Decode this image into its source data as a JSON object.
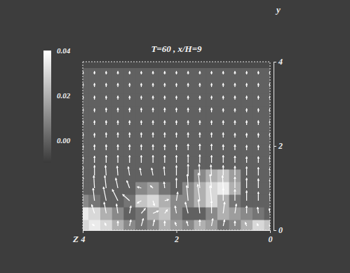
{
  "chart_data": {
    "type": "vector_field",
    "title": "T=60 , x/H=9",
    "x_label": "Z",
    "y_label": "y",
    "xlim": [
      4,
      0
    ],
    "ylim": [
      0,
      4
    ],
    "xticks": [
      4,
      2,
      0
    ],
    "yticks": [
      0,
      2,
      4
    ],
    "color": "#ffffff",
    "x": [
      4,
      3.75,
      3.5,
      3.25,
      3,
      2.75,
      2.5,
      2.25,
      2,
      1.75,
      1.5,
      1.25,
      1,
      0.75,
      0.5,
      0.25,
      0
    ],
    "y": [
      0.1,
      0.4,
      0.7,
      1.0,
      1.3,
      1.6,
      1.9,
      2.2,
      2.5,
      2.8,
      3.1,
      3.4,
      3.7
    ],
    "u": [
      [
        0.02,
        0.03,
        0.02,
        0,
        -0.02,
        -0.03,
        -0.02,
        0,
        0.02,
        0.02,
        0,
        -0.02,
        -0.02,
        0,
        0.02,
        0.02,
        0.01
      ],
      [
        0.03,
        0.04,
        0.03,
        0.02,
        -0.02,
        -0.06,
        -0.08,
        -0.04,
        0.02,
        0.04,
        0.02,
        0,
        -0.02,
        -0.02,
        0,
        0.01,
        0.01
      ],
      [
        0.01,
        0.02,
        0.04,
        0.08,
        0.1,
        0.06,
        -0.02,
        -0.06,
        -0.02,
        0.02,
        0.03,
        0.02,
        0,
        0,
        0,
        0,
        0
      ],
      [
        0,
        0.01,
        0.02,
        0.03,
        0.04,
        0.06,
        0.04,
        0.01,
        0,
        0.01,
        0.02,
        0.02,
        0.01,
        0,
        0,
        0,
        0
      ],
      [
        0,
        0,
        0.01,
        0.01,
        0.02,
        0.02,
        0.02,
        0.01,
        0,
        0,
        0.01,
        0.01,
        0,
        0,
        0,
        0,
        0
      ],
      [
        0,
        0,
        0,
        0,
        0,
        0,
        0,
        0,
        0,
        0,
        0,
        0,
        0,
        0,
        0,
        0,
        0
      ],
      [
        0,
        0,
        0,
        0,
        0,
        0,
        0,
        0,
        0,
        0,
        0,
        0,
        0,
        0,
        0,
        0,
        0
      ],
      [
        0,
        0,
        0,
        0,
        0,
        0,
        0,
        0,
        0,
        0,
        0,
        0,
        0,
        0,
        0,
        0,
        0
      ],
      [
        0,
        0,
        0,
        0,
        0,
        0,
        0,
        0,
        0,
        0,
        0,
        0,
        0,
        0,
        0,
        0,
        0
      ],
      [
        0,
        0,
        0,
        0,
        0,
        0,
        0,
        0,
        0,
        0,
        0,
        0,
        0,
        0,
        0,
        0,
        0
      ],
      [
        0,
        0,
        0,
        0,
        0,
        0,
        0,
        0,
        0,
        0,
        0,
        0,
        0,
        0,
        0,
        0,
        0
      ],
      [
        0,
        0,
        0,
        0,
        0,
        0,
        0,
        0,
        0,
        0,
        0,
        0,
        0,
        0,
        0,
        0,
        0
      ],
      [
        0,
        0,
        0,
        0,
        0,
        0,
        0,
        0,
        0,
        0,
        0,
        0,
        0,
        0,
        0,
        0,
        0
      ]
    ],
    "v": [
      [
        0.02,
        0.03,
        0.05,
        0.08,
        0.1,
        0.12,
        0.1,
        0.08,
        0.06,
        0.08,
        0.1,
        0.12,
        0.1,
        0.08,
        0.06,
        0.04,
        0.02
      ],
      [
        0.1,
        0.14,
        0.18,
        0.15,
        0.12,
        0.08,
        0.04,
        0.06,
        0.12,
        0.18,
        0.22,
        0.2,
        0.18,
        0.15,
        0.12,
        0.1,
        0.08
      ],
      [
        0.16,
        0.2,
        0.22,
        0.18,
        0.1,
        -0.04,
        -0.08,
        0.02,
        0.14,
        0.24,
        0.26,
        0.24,
        0.2,
        0.18,
        0.16,
        0.14,
        0.12
      ],
      [
        0.18,
        0.2,
        0.2,
        0.16,
        0.12,
        0.02,
        0.04,
        0.1,
        0.16,
        0.22,
        0.24,
        0.22,
        0.2,
        0.18,
        0.16,
        0.15,
        0.14
      ],
      [
        0.14,
        0.16,
        0.16,
        0.15,
        0.14,
        0.12,
        0.12,
        0.14,
        0.16,
        0.18,
        0.18,
        0.17,
        0.16,
        0.15,
        0.14,
        0.13,
        0.12
      ],
      [
        0.1,
        0.11,
        0.12,
        0.12,
        0.12,
        0.12,
        0.12,
        0.12,
        0.12,
        0.13,
        0.13,
        0.12,
        0.12,
        0.11,
        0.1,
        0.1,
        0.1
      ],
      [
        0.08,
        0.09,
        0.09,
        0.09,
        0.09,
        0.09,
        0.09,
        0.09,
        0.09,
        0.1,
        0.1,
        0.1,
        0.09,
        0.09,
        0.08,
        0.08,
        0.08
      ],
      [
        0.07,
        0.07,
        0.08,
        0.08,
        0.08,
        0.08,
        0.08,
        0.08,
        0.08,
        0.08,
        0.08,
        0.08,
        0.08,
        0.07,
        0.07,
        0.07,
        0.07
      ],
      [
        0.07,
        0.07,
        0.07,
        0.07,
        0.07,
        0.07,
        0.07,
        0.07,
        0.07,
        0.07,
        0.07,
        0.07,
        0.07,
        0.07,
        0.07,
        0.07,
        0.07
      ],
      [
        0.06,
        0.06,
        0.07,
        0.07,
        0.07,
        0.07,
        0.07,
        0.07,
        0.07,
        0.07,
        0.07,
        0.07,
        0.06,
        0.06,
        0.06,
        0.06,
        0.06
      ],
      [
        0.06,
        0.06,
        0.06,
        0.06,
        0.06,
        0.06,
        0.06,
        0.06,
        0.06,
        0.06,
        0.06,
        0.06,
        0.06,
        0.06,
        0.06,
        0.06,
        0.06
      ],
      [
        0.06,
        0.06,
        0.06,
        0.06,
        0.06,
        0.06,
        0.06,
        0.06,
        0.06,
        0.06,
        0.06,
        0.06,
        0.06,
        0.06,
        0.06,
        0.06,
        0.06
      ],
      [
        0.05,
        0.05,
        0.05,
        0.05,
        0.05,
        0.05,
        0.05,
        0.05,
        0.05,
        0.05,
        0.05,
        0.05,
        0.05,
        0.05,
        0.05,
        0.05,
        0.05
      ]
    ],
    "cells": [
      [
        0.03,
        0.035,
        0.03,
        0.02,
        0.01,
        0.005,
        0.01,
        0.02,
        0.015,
        0.01,
        0.02,
        0.015,
        0.005,
        0.01,
        0.02,
        0.03,
        0.025
      ],
      [
        0.035,
        0.03,
        0.02,
        0.01,
        0,
        0.005,
        0.02,
        0.025,
        0.01,
        0,
        0,
        0.01,
        0.02,
        0.015,
        0.01,
        0.005,
        0
      ],
      [
        0.01,
        0.005,
        0,
        0,
        0.005,
        0.025,
        0.03,
        0.02,
        0.01,
        0.01,
        0.02,
        0.03,
        0.02,
        0.005,
        0,
        0,
        0
      ],
      [
        0,
        0,
        0,
        0,
        0,
        0.01,
        0.015,
        0.005,
        0,
        0.01,
        0.02,
        0.03,
        0.035,
        0.02,
        0,
        0,
        0
      ],
      [
        0,
        0,
        0,
        0,
        0,
        0,
        0,
        0,
        0,
        0,
        0.01,
        0.02,
        0.025,
        0.015,
        0,
        0,
        0
      ],
      [
        0,
        0,
        0,
        0,
        0,
        0,
        0,
        0,
        0,
        0,
        0,
        0,
        0,
        0,
        0,
        0,
        0
      ],
      [
        0,
        0,
        0,
        0,
        0,
        0,
        0,
        0,
        0,
        0,
        0,
        0,
        0,
        0,
        0,
        0,
        0
      ],
      [
        0,
        0,
        0,
        0,
        0,
        0,
        0,
        0,
        0,
        0,
        0,
        0,
        0,
        0,
        0,
        0,
        0
      ],
      [
        0,
        0,
        0,
        0,
        0,
        0,
        0,
        0,
        0,
        0,
        0,
        0,
        0,
        0,
        0,
        0,
        0
      ],
      [
        0,
        0,
        0,
        0,
        0,
        0,
        0,
        0,
        0,
        0,
        0,
        0,
        0,
        0,
        0,
        0,
        0
      ],
      [
        0,
        0,
        0,
        0,
        0,
        0,
        0,
        0,
        0,
        0,
        0,
        0,
        0,
        0,
        0,
        0,
        0
      ],
      [
        0,
        0,
        0,
        0,
        0,
        0,
        0,
        0,
        0,
        0,
        0,
        0,
        0,
        0,
        0,
        0,
        0
      ],
      [
        0,
        0,
        0,
        0,
        0,
        0,
        0,
        0,
        0,
        0,
        0,
        0,
        0,
        0,
        0,
        0,
        0
      ]
    ],
    "colorbar": {
      "range": [
        -0.01,
        0.04
      ],
      "ticks": [
        {
          "value": 0.04,
          "label": "0.04"
        },
        {
          "value": 0.02,
          "label": "0.02"
        },
        {
          "value": 0,
          "label": "0.00"
        }
      ]
    }
  }
}
